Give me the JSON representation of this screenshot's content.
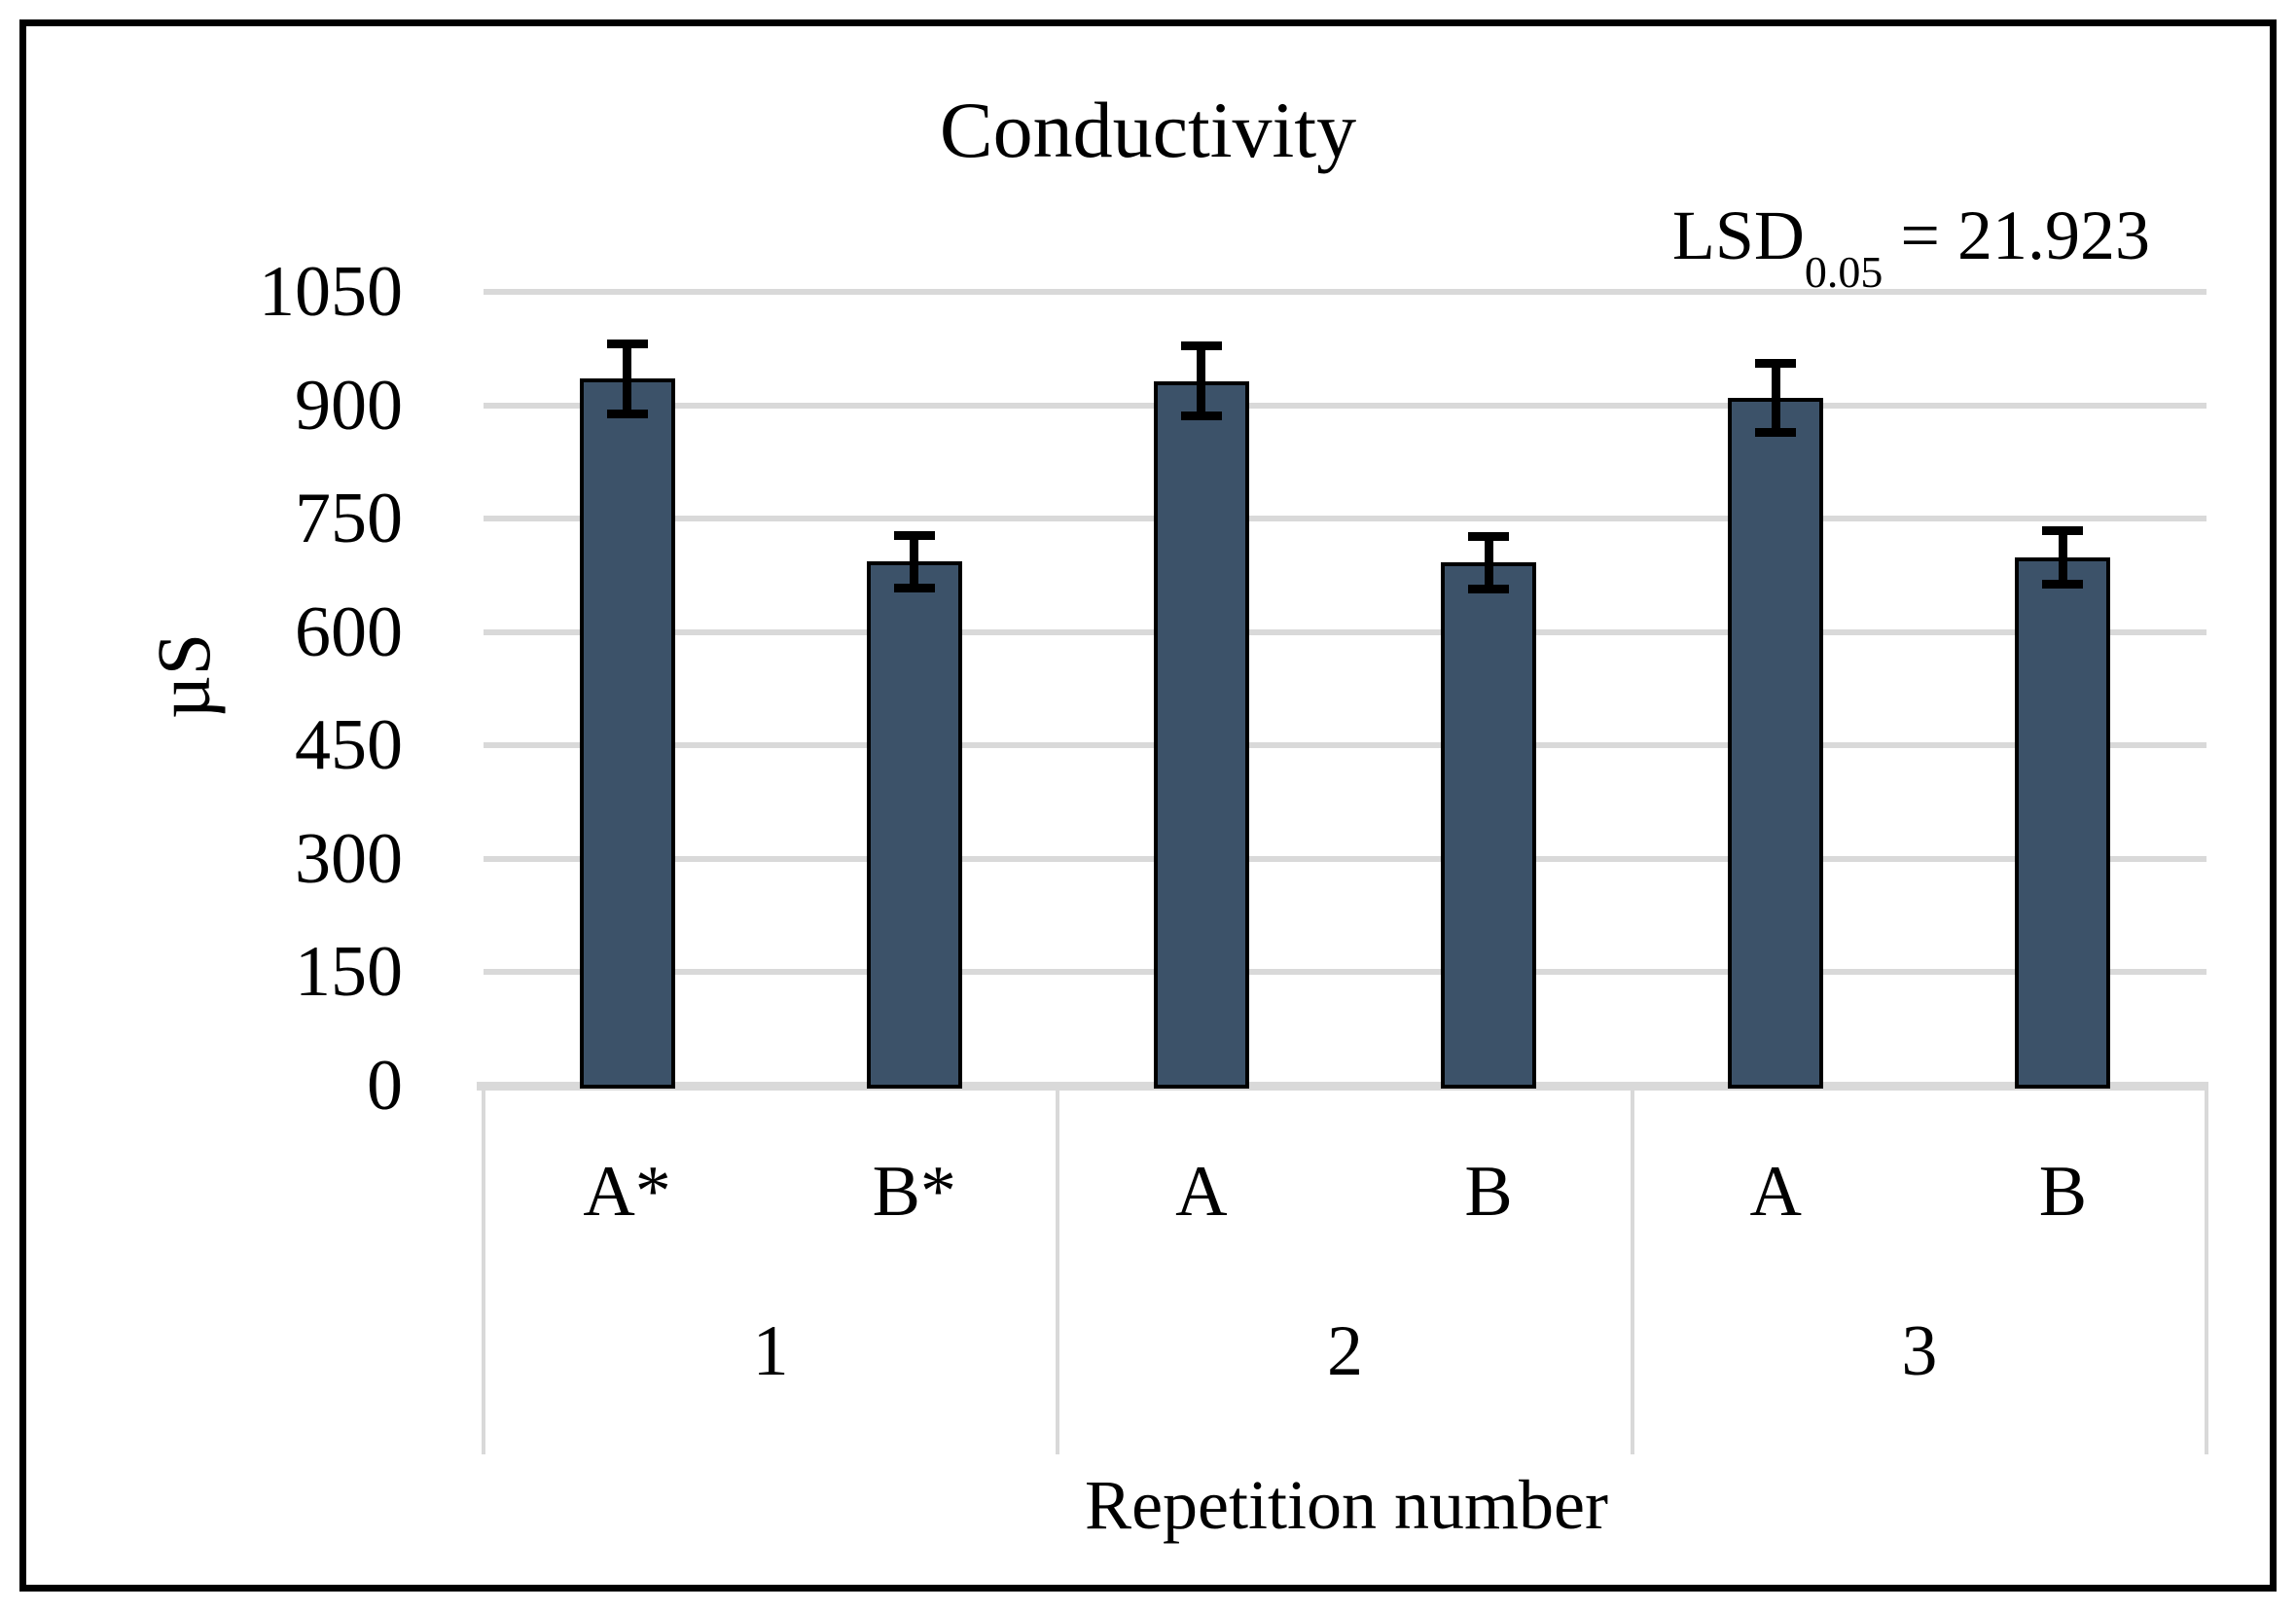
{
  "figure": {
    "title": "Conductivity",
    "annotation": {
      "base": "LSD",
      "subscript": "0.05",
      "rest": " = 21.923"
    },
    "y_axis_title": "µS",
    "x_axis_title": "Repetition number"
  },
  "chart_data": {
    "type": "bar",
    "title": "Conductivity",
    "ylabel": "µS",
    "xlabel": "Repetition number",
    "annotation": "LSD 0.05 = 21.923",
    "lsd_value": 21.923,
    "ylim": [
      0,
      1050
    ],
    "yticks": [
      0,
      150,
      300,
      450,
      600,
      750,
      900,
      1050
    ],
    "grid": true,
    "legend": "none",
    "groups": [
      "1",
      "2",
      "3"
    ],
    "bars": [
      {
        "group": "1",
        "label": "A*",
        "value": 935,
        "error": 46
      },
      {
        "group": "1",
        "label": "B*",
        "value": 693,
        "error": 35
      },
      {
        "group": "2",
        "label": "A",
        "value": 932,
        "error": 46
      },
      {
        "group": "2",
        "label": "B",
        "value": 692,
        "error": 35
      },
      {
        "group": "3",
        "label": "A",
        "value": 910,
        "error": 46
      },
      {
        "group": "3",
        "label": "B",
        "value": 699,
        "error": 35
      }
    ],
    "bar_color": "#3C5269",
    "bar_border_color": "#000000",
    "gridline_color": "#D9D9D9",
    "error_bar_color": "#000000"
  }
}
